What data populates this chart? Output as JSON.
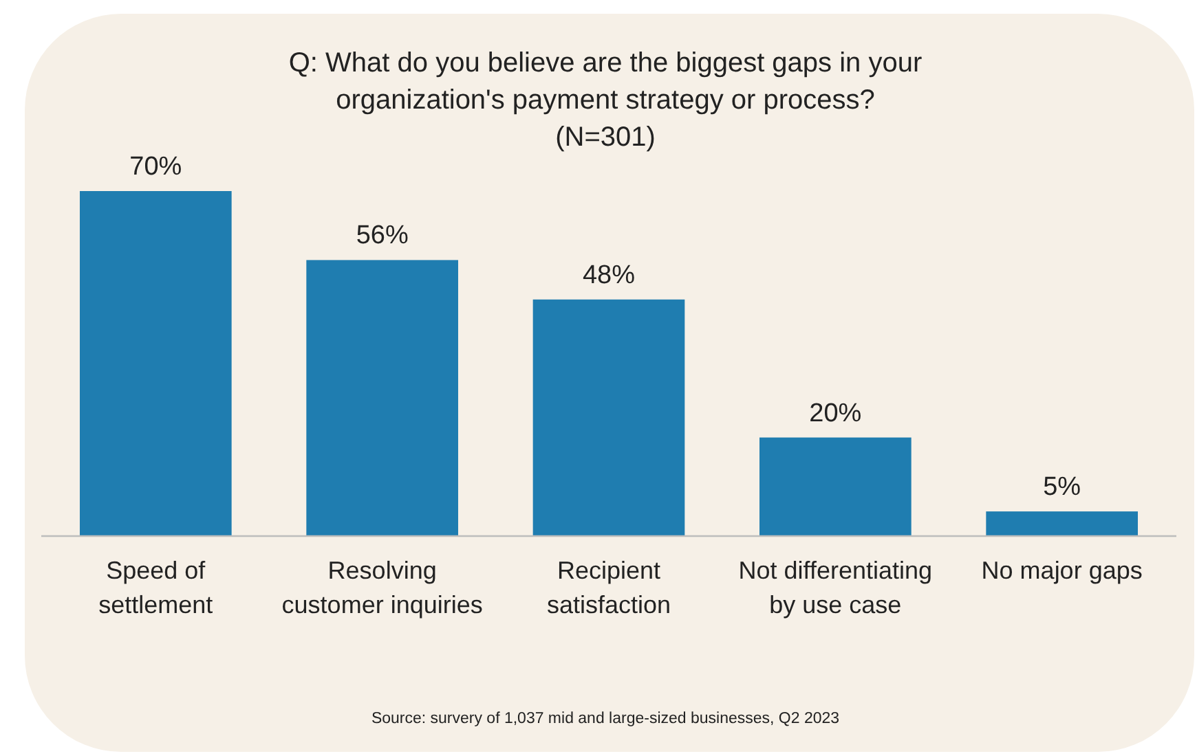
{
  "chart_data": {
    "type": "bar",
    "title": "Q: What do you believe are the biggest gaps in your organization's payment strategy or process?",
    "subtitle": "(N=301)",
    "categories": [
      "Speed of settlement",
      "Resolving customer inquiries",
      "Recipient satisfaction",
      "Not differentiating by use case",
      "No major gaps"
    ],
    "values": [
      70,
      56,
      48,
      20,
      5
    ],
    "color": "#1f7db0",
    "data_labels": true,
    "value_labels": [
      "70%",
      "56%",
      "48%",
      "20%",
      "5%"
    ],
    "annotations": [
      "Source: survery of 1,037 mid and large-sized businesses, Q2 2023"
    ]
  }
}
